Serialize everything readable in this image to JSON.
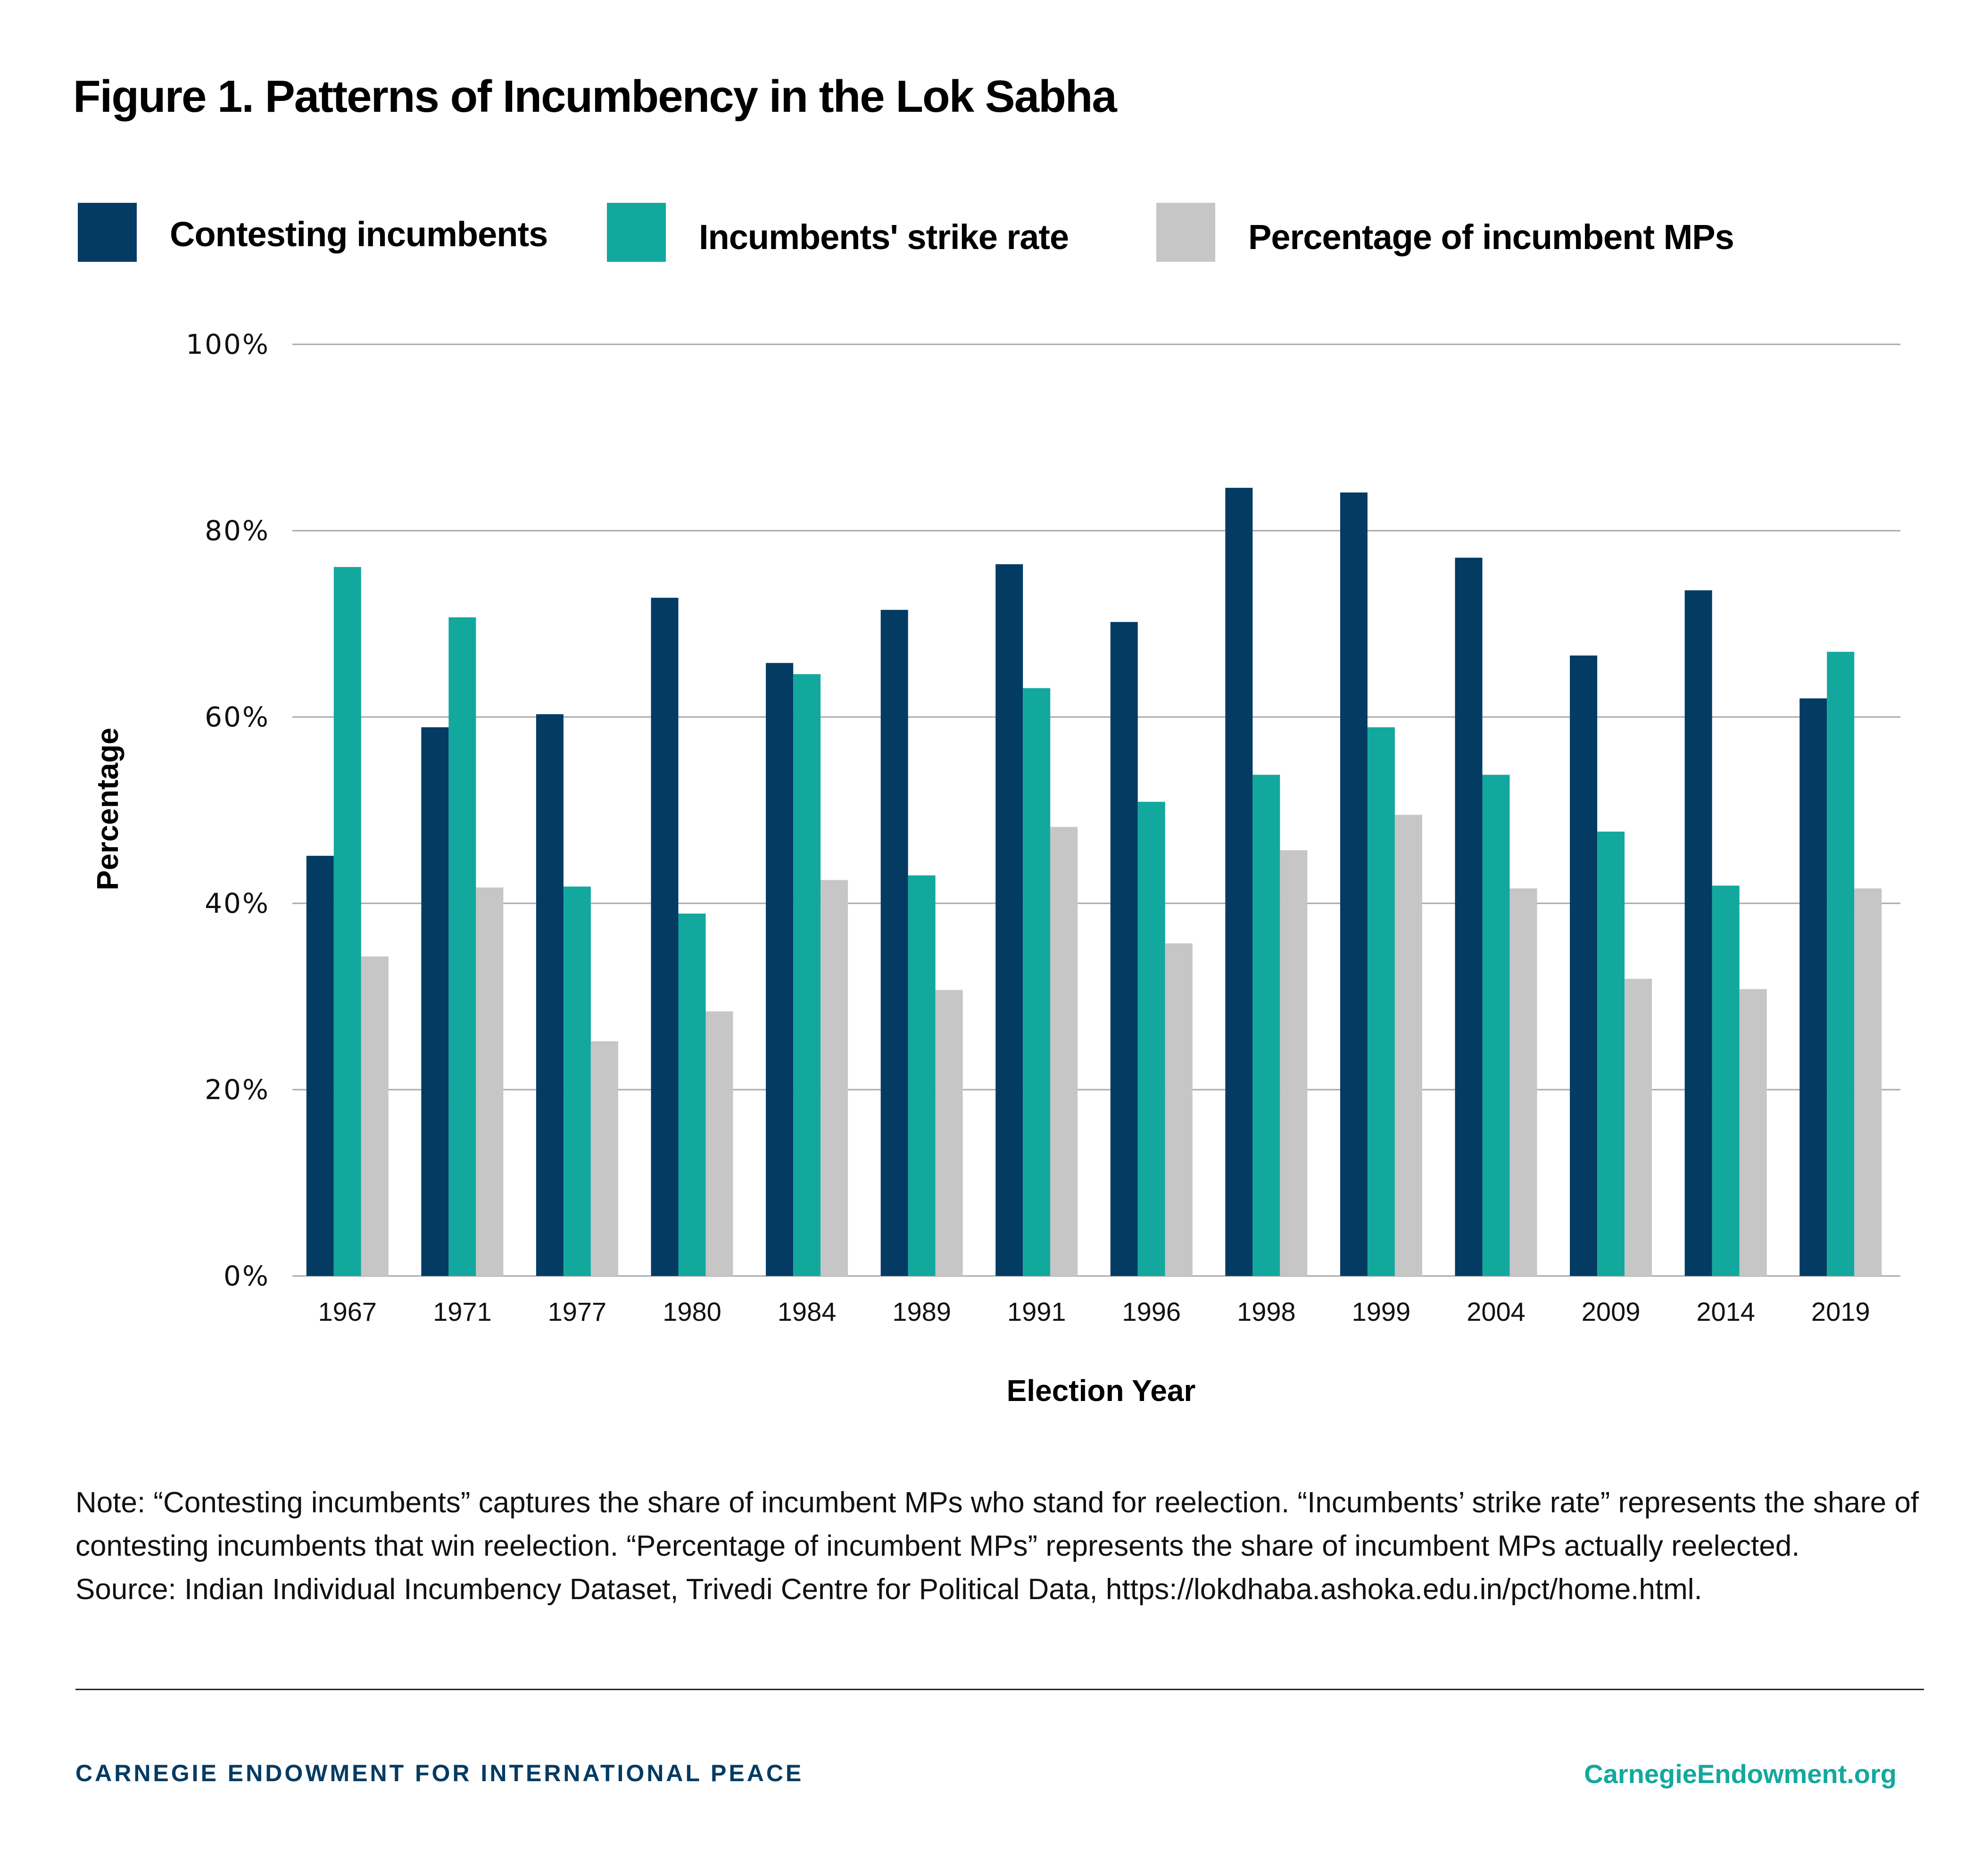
{
  "title": "Figure 1. Patterns of Incumbency in the Lok Sabha",
  "legend": [
    {
      "label": "Contesting incumbents",
      "color": "#033b63"
    },
    {
      "label": "Incumbents' strike rate",
      "color": "#13a89e"
    },
    {
      "label": "Percentage of incumbent MPs",
      "color": "#c6c6c6"
    }
  ],
  "chart_data": {
    "type": "bar",
    "title": "Figure 1. Patterns of Incumbency in the Lok Sabha",
    "xlabel": "Election Year",
    "ylabel": "Percentage",
    "ylim": [
      0,
      100
    ],
    "yticks": [
      0,
      20,
      40,
      60,
      80,
      100
    ],
    "ytick_labels": [
      "0%",
      "20%",
      "40%",
      "60%",
      "80%",
      "100%"
    ],
    "grid": true,
    "legend_position": "top-left",
    "categories": [
      "1967",
      "1971",
      "1977",
      "1980",
      "1984",
      "1989",
      "1991",
      "1996",
      "1998",
      "1999",
      "2004",
      "2009",
      "2014",
      "2019"
    ],
    "series": [
      {
        "name": "Contesting incumbents",
        "color": "#033b63",
        "values": [
          45.1,
          58.9,
          60.3,
          72.8,
          65.8,
          71.5,
          76.4,
          70.2,
          84.6,
          84.1,
          77.1,
          66.6,
          73.6,
          62.0
        ]
      },
      {
        "name": "Incumbents' strike rate",
        "color": "#13a89e",
        "values": [
          76.1,
          70.7,
          41.8,
          38.9,
          64.6,
          43.0,
          63.1,
          50.9,
          53.8,
          58.9,
          53.8,
          47.7,
          41.9,
          67.0
        ]
      },
      {
        "name": "Percentage of incumbent MPs",
        "color": "#c6c6c6",
        "values": [
          34.3,
          41.7,
          25.2,
          28.4,
          42.5,
          30.7,
          48.2,
          35.7,
          45.7,
          49.5,
          41.6,
          31.9,
          30.8,
          41.6
        ]
      }
    ]
  },
  "notes": {
    "note": "Note: “Contesting incumbents” captures the share of incumbent MPs who stand for reelection. “Incumbents’ strike rate” represents the share of contesting incumbents that win reelection. “Percentage of incumbent MPs” represents the share of incumbent MPs actually reelected.",
    "source": "Source: Indian Individual Incumbency Dataset, Trivedi Centre for Political Data, https://lokdhaba.ashoka.edu.in/pct/home.html."
  },
  "footer": {
    "organization": "CARNEGIE ENDOWMENT FOR INTERNATIONAL PEACE",
    "website": "CarnegieEndowment.org"
  }
}
